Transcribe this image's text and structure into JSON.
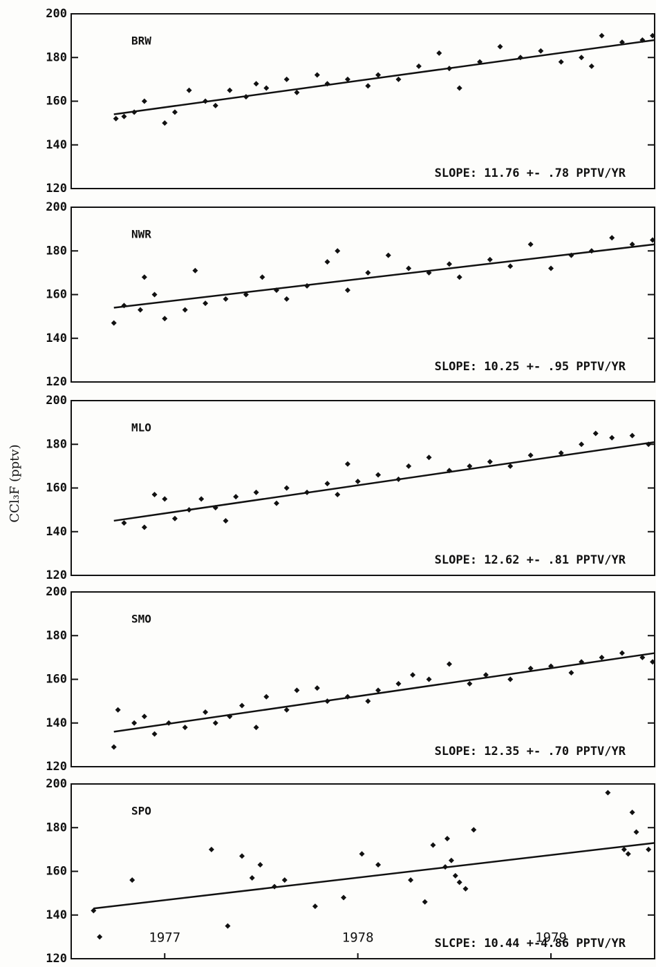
{
  "y_label": "CCl₃F (pptv)",
  "chart_data": [
    {
      "type": "scatter",
      "title": "BRW",
      "annotation": "SLOPE: 11.76 +- .78 PPTV/YR",
      "xlim": [
        1977.04,
        1979.91
      ],
      "ylim": [
        120,
        200
      ],
      "yticks": [
        120,
        140,
        160,
        180,
        200
      ],
      "x": [
        1977.26,
        1977.3,
        1977.35,
        1977.4,
        1977.5,
        1977.55,
        1977.62,
        1977.7,
        1977.75,
        1977.82,
        1977.9,
        1977.95,
        1978.0,
        1978.1,
        1978.15,
        1978.25,
        1978.3,
        1978.4,
        1978.5,
        1978.55,
        1978.65,
        1978.75,
        1978.85,
        1978.9,
        1978.95,
        1979.05,
        1979.15,
        1979.25,
        1979.35,
        1979.45,
        1979.55,
        1979.6,
        1979.65,
        1979.75,
        1979.85,
        1979.9
      ],
      "values": [
        152,
        153,
        155,
        160,
        150,
        155,
        165,
        160,
        158,
        165,
        162,
        168,
        166,
        170,
        164,
        172,
        168,
        170,
        167,
        172,
        170,
        176,
        182,
        175,
        166,
        178,
        185,
        180,
        183,
        178,
        180,
        176,
        190,
        187,
        188,
        190
      ],
      "trend": {
        "x": [
          1977.25,
          1979.91
        ],
        "y": [
          154,
          188
        ]
      },
      "color": "#111111"
    },
    {
      "type": "scatter",
      "title": "NWR",
      "annotation": "SLOPE: 10.25 +- .95 PPTV/YR",
      "xlim": [
        1977.04,
        1979.91
      ],
      "ylim": [
        120,
        200
      ],
      "yticks": [
        120,
        140,
        160,
        180,
        200
      ],
      "x": [
        1977.25,
        1977.3,
        1977.38,
        1977.4,
        1977.45,
        1977.5,
        1977.6,
        1977.65,
        1977.7,
        1977.8,
        1977.9,
        1977.98,
        1978.05,
        1978.1,
        1978.2,
        1978.3,
        1978.35,
        1978.4,
        1978.5,
        1978.6,
        1978.7,
        1978.8,
        1978.9,
        1978.95,
        1979.1,
        1979.2,
        1979.3,
        1979.4,
        1979.5,
        1979.6,
        1979.7,
        1979.8,
        1979.9
      ],
      "values": [
        147,
        155,
        153,
        168,
        160,
        149,
        153,
        171,
        156,
        158,
        160,
        168,
        162,
        158,
        164,
        175,
        180,
        162,
        170,
        178,
        172,
        170,
        174,
        168,
        176,
        173,
        183,
        172,
        178,
        180,
        186,
        183,
        185
      ],
      "trend": {
        "x": [
          1977.25,
          1979.91
        ],
        "y": [
          154,
          183
        ]
      },
      "color": "#111111"
    },
    {
      "type": "scatter",
      "title": "MLO",
      "annotation": "SLOPE: 12.62 +- .81 PPTV/YR",
      "xlim": [
        1977.04,
        1979.91
      ],
      "ylim": [
        120,
        200
      ],
      "yticks": [
        120,
        140,
        160,
        180,
        200
      ],
      "x": [
        1977.3,
        1977.4,
        1977.45,
        1977.5,
        1977.55,
        1977.62,
        1977.68,
        1977.75,
        1977.8,
        1977.85,
        1977.95,
        1978.05,
        1978.1,
        1978.2,
        1978.3,
        1978.35,
        1978.4,
        1978.45,
        1978.55,
        1978.65,
        1978.7,
        1978.8,
        1978.9,
        1979.0,
        1979.1,
        1979.2,
        1979.3,
        1979.45,
        1979.55,
        1979.62,
        1979.7,
        1979.8,
        1979.88
      ],
      "values": [
        144,
        142,
        157,
        155,
        146,
        150,
        155,
        151,
        145,
        156,
        158,
        153,
        160,
        158,
        162,
        157,
        171,
        163,
        166,
        164,
        170,
        174,
        168,
        170,
        172,
        170,
        175,
        176,
        180,
        185,
        183,
        184,
        180
      ],
      "trend": {
        "x": [
          1977.25,
          1979.91
        ],
        "y": [
          145,
          181
        ]
      },
      "color": "#111111"
    },
    {
      "type": "scatter",
      "title": "SMO",
      "annotation": "SLOPE: 12.35 +- .70 PPTV/YR",
      "xlim": [
        1977.04,
        1979.91
      ],
      "ylim": [
        120,
        200
      ],
      "yticks": [
        120,
        140,
        160,
        180,
        200
      ],
      "x": [
        1977.25,
        1977.27,
        1977.35,
        1977.4,
        1977.45,
        1977.52,
        1977.6,
        1977.7,
        1977.75,
        1977.82,
        1977.88,
        1977.95,
        1978.0,
        1978.1,
        1978.15,
        1978.25,
        1978.3,
        1978.4,
        1978.5,
        1978.55,
        1978.65,
        1978.72,
        1978.8,
        1978.9,
        1979.0,
        1979.08,
        1979.2,
        1979.3,
        1979.4,
        1979.5,
        1979.55,
        1979.65,
        1979.75,
        1979.85,
        1979.9
      ],
      "values": [
        129,
        146,
        140,
        143,
        135,
        140,
        138,
        145,
        140,
        143,
        148,
        138,
        152,
        146,
        155,
        156,
        150,
        152,
        150,
        155,
        158,
        162,
        160,
        167,
        158,
        162,
        160,
        165,
        166,
        163,
        168,
        170,
        172,
        170,
        168
      ],
      "trend": {
        "x": [
          1977.25,
          1979.91
        ],
        "y": [
          136,
          172
        ]
      },
      "color": "#111111"
    },
    {
      "type": "scatter",
      "title": "SPO",
      "annotation": "SLCPE: 10.44 +-4.86 PPTV/YR",
      "xlim": [
        1977.04,
        1979.91
      ],
      "ylim": [
        120,
        200
      ],
      "yticks": [
        120,
        140,
        160,
        180,
        200
      ],
      "xticks": [
        {
          "value": 1977.5,
          "label": "1977"
        },
        {
          "value": 1978.45,
          "label": "1978"
        },
        {
          "value": 1979.4,
          "label": "1979"
        }
      ],
      "x": [
        1977.15,
        1977.18,
        1977.34,
        1977.73,
        1977.81,
        1977.88,
        1977.93,
        1977.97,
        1978.04,
        1978.09,
        1978.24,
        1978.38,
        1978.47,
        1978.55,
        1978.71,
        1978.78,
        1978.82,
        1978.88,
        1978.89,
        1978.91,
        1978.93,
        1978.95,
        1978.98,
        1979.02,
        1979.68,
        1979.76,
        1979.78,
        1979.8,
        1979.82,
        1979.88
      ],
      "values": [
        142,
        130,
        156,
        170,
        135,
        167,
        157,
        163,
        153,
        156,
        144,
        148,
        168,
        163,
        156,
        146,
        172,
        162,
        175,
        165,
        158,
        155,
        152,
        179,
        196,
        170,
        168,
        187,
        178,
        170
      ],
      "trend": {
        "x": [
          1977.15,
          1979.91
        ],
        "y": [
          143,
          173
        ]
      },
      "color": "#111111"
    }
  ]
}
